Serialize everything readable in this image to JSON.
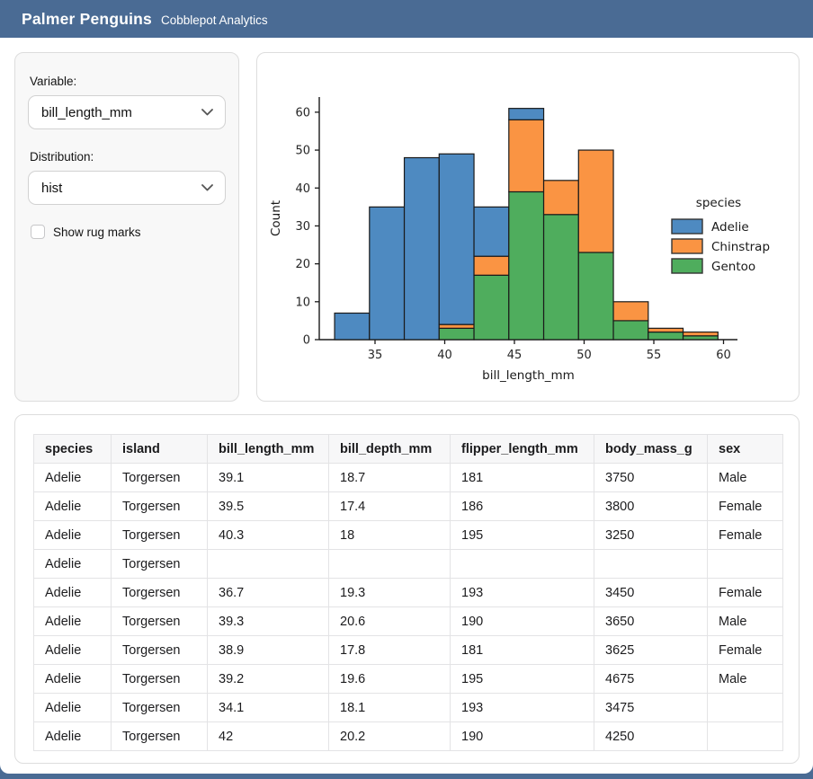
{
  "app": {
    "title": "Palmer Penguins",
    "subtitle": "Cobblepot Analytics"
  },
  "theme": {
    "header_bg": "#4a6b94",
    "panel_bg": "#f8f8f8",
    "card_border": "#dddddd",
    "adelie_blue": "#4e8ac1",
    "chinstrap_orange": "#fa9443",
    "gentoo_green": "#4fad5d",
    "bar_edge": "#1a1a1a"
  },
  "controls": {
    "variable_label": "Variable:",
    "variable_value": "bill_length_mm",
    "distribution_label": "Distribution:",
    "distribution_value": "hist",
    "rug_label": "Show rug marks",
    "rug_checked": false
  },
  "chart_data": {
    "type": "bar",
    "subtype": "stacked-histogram",
    "title": "",
    "xlabel": "bill_length_mm",
    "ylabel": "Count",
    "legend_title": "species",
    "legend_position": "center-right",
    "grid": false,
    "bin_start": 32.1,
    "bin_width": 2.5,
    "bin_edges": [
      32.1,
      34.6,
      37.1,
      39.6,
      42.1,
      44.6,
      47.1,
      49.6,
      52.1,
      54.6,
      57.1,
      59.6
    ],
    "x_ticks": [
      35,
      40,
      45,
      50,
      55,
      60
    ],
    "y_ticks": [
      0,
      10,
      20,
      30,
      40,
      50,
      60
    ],
    "xlim": [
      31,
      61
    ],
    "ylim": [
      0,
      64
    ],
    "stack_order_bottom_to_top": [
      "Gentoo",
      "Chinstrap",
      "Adelie"
    ],
    "series": [
      {
        "name": "Adelie",
        "color": "#4e8ac1",
        "values": [
          7,
          35,
          48,
          45,
          13,
          3,
          0,
          0,
          0,
          0,
          0
        ]
      },
      {
        "name": "Chinstrap",
        "color": "#fa9443",
        "values": [
          0,
          0,
          0,
          1,
          5,
          19,
          9,
          27,
          5,
          1,
          1
        ]
      },
      {
        "name": "Gentoo",
        "color": "#4fad5d",
        "values": [
          0,
          0,
          0,
          3,
          17,
          39,
          33,
          23,
          5,
          2,
          1
        ]
      }
    ],
    "bin_totals": [
      7,
      35,
      48,
      49,
      35,
      61,
      42,
      50,
      10,
      3,
      2
    ]
  },
  "table": {
    "columns": [
      "species",
      "island",
      "bill_length_mm",
      "bill_depth_mm",
      "flipper_length_mm",
      "body_mass_g",
      "sex"
    ],
    "rows": [
      [
        "Adelie",
        "Torgersen",
        "39.1",
        "18.7",
        "181",
        "3750",
        "Male"
      ],
      [
        "Adelie",
        "Torgersen",
        "39.5",
        "17.4",
        "186",
        "3800",
        "Female"
      ],
      [
        "Adelie",
        "Torgersen",
        "40.3",
        "18",
        "195",
        "3250",
        "Female"
      ],
      [
        "Adelie",
        "Torgersen",
        "",
        "",
        "",
        "",
        ""
      ],
      [
        "Adelie",
        "Torgersen",
        "36.7",
        "19.3",
        "193",
        "3450",
        "Female"
      ],
      [
        "Adelie",
        "Torgersen",
        "39.3",
        "20.6",
        "190",
        "3650",
        "Male"
      ],
      [
        "Adelie",
        "Torgersen",
        "38.9",
        "17.8",
        "181",
        "3625",
        "Female"
      ],
      [
        "Adelie",
        "Torgersen",
        "39.2",
        "19.6",
        "195",
        "4675",
        "Male"
      ],
      [
        "Adelie",
        "Torgersen",
        "34.1",
        "18.1",
        "193",
        "3475",
        ""
      ],
      [
        "Adelie",
        "Torgersen",
        "42",
        "20.2",
        "190",
        "4250",
        ""
      ]
    ]
  }
}
